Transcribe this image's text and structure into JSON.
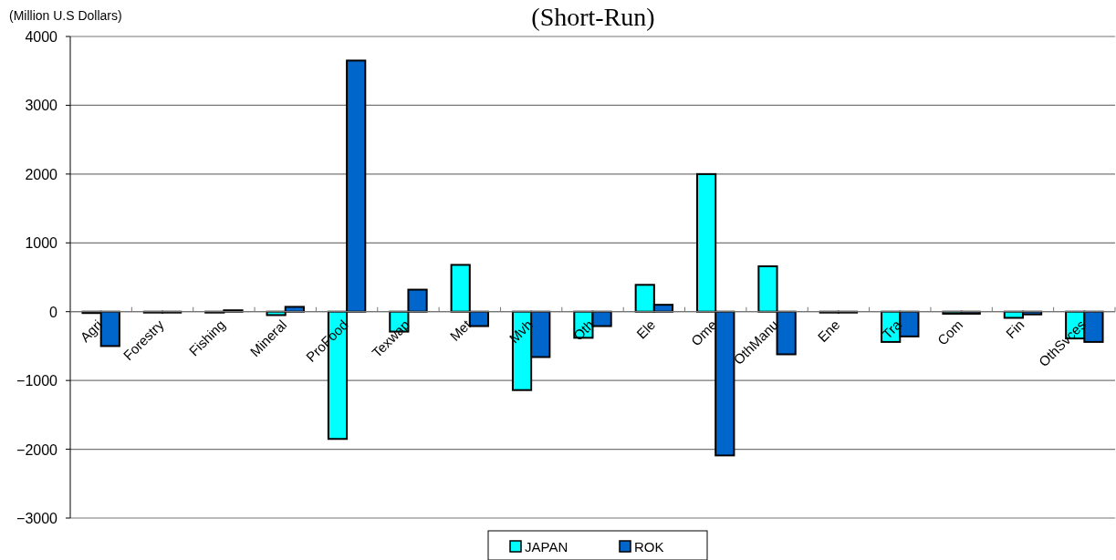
{
  "chart_data": {
    "type": "bar",
    "title": "(Short-Run)",
    "ylabel": "(Million U.S Dollars)",
    "categories": [
      "Agri",
      "Forestry",
      "Fishing",
      "Mineral",
      "ProFood",
      "Texwap",
      "Met",
      "Mvh",
      "Oth",
      "Ele",
      "Ome",
      "OthManu",
      "Ene",
      "Tra",
      "Com",
      "Fin",
      "OthSvces"
    ],
    "series": [
      {
        "name": "JAPAN",
        "color": "#00ffff",
        "values": [
          -20,
          -10,
          -10,
          -50,
          -1850,
          -290,
          680,
          -1140,
          -380,
          390,
          2000,
          660,
          0,
          -440,
          -30,
          -90,
          -390
        ]
      },
      {
        "name": "ROK",
        "color": "#0066cc",
        "values": [
          -500,
          -10,
          20,
          70,
          3650,
          320,
          -210,
          -660,
          -210,
          100,
          -2090,
          -620,
          0,
          -360,
          -30,
          -40,
          -440
        ]
      }
    ],
    "ylim": [
      -3000,
      4000
    ],
    "yticks": [
      -3000,
      -2000,
      -1000,
      0,
      1000,
      2000,
      3000,
      4000
    ],
    "grid": "y",
    "legend": "bottom"
  }
}
